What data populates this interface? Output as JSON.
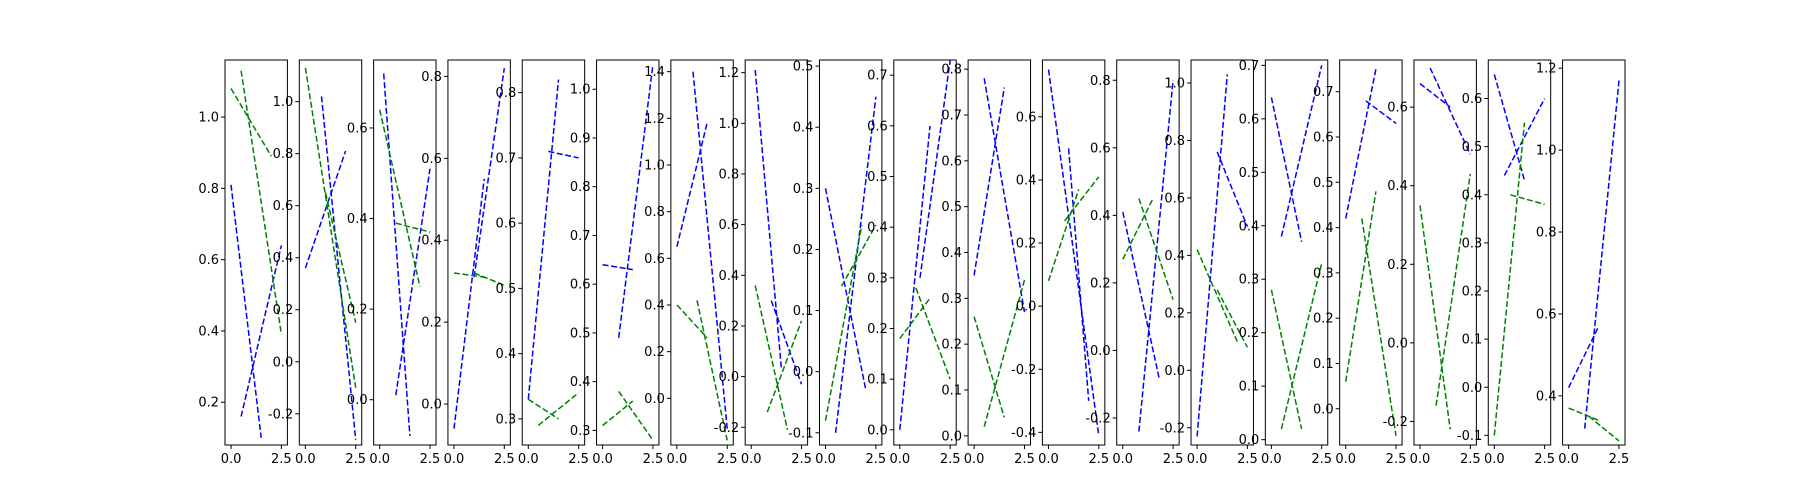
{
  "figure": {
    "background": "#ffffff"
  },
  "chart_data": [
    {
      "type": "line",
      "xticks": [
        "0.0",
        "2.5"
      ],
      "yticks": [
        "0.2",
        "0.4",
        "0.6",
        "0.8",
        "1.0"
      ],
      "ylim": [
        0.08,
        1.16
      ],
      "series": [
        {
          "color": "#0000ff",
          "x": [
            0,
            1.5
          ],
          "y": [
            0.81,
            0.1
          ]
        },
        {
          "color": "#0000ff",
          "x": [
            0.5,
            2.5
          ],
          "y": [
            0.16,
            0.64
          ]
        },
        {
          "color": "#008000",
          "x": [
            0,
            2
          ],
          "y": [
            1.08,
            0.89
          ]
        },
        {
          "color": "#008000",
          "x": [
            0.5,
            2.5
          ],
          "y": [
            1.13,
            0.39
          ]
        }
      ]
    },
    {
      "type": "line",
      "xticks": [
        "0.0",
        "2.5"
      ],
      "yticks": [
        "-0.2",
        "0.0",
        "0.2",
        "0.4",
        "0.6",
        "0.8",
        "1.0"
      ],
      "ylim": [
        -0.32,
        1.16
      ],
      "series": [
        {
          "color": "#0000ff",
          "x": [
            0,
            2
          ],
          "y": [
            0.36,
            0.81
          ]
        },
        {
          "color": "#0000ff",
          "x": [
            0.8,
            2.5
          ],
          "y": [
            1.02,
            -0.3
          ]
        },
        {
          "color": "#008000",
          "x": [
            0,
            2.5
          ],
          "y": [
            1.13,
            -0.1
          ]
        },
        {
          "color": "#008000",
          "x": [
            1,
            2.5
          ],
          "y": [
            0.65,
            0.15
          ]
        }
      ]
    },
    {
      "type": "line",
      "xticks": [
        "0.0",
        "2.5"
      ],
      "yticks": [
        "0.0",
        "0.2",
        "0.4",
        "0.6"
      ],
      "ylim": [
        -0.1,
        0.75
      ],
      "series": [
        {
          "color": "#0000ff",
          "x": [
            0.2,
            1.5
          ],
          "y": [
            0.72,
            -0.08
          ]
        },
        {
          "color": "#0000ff",
          "x": [
            0.8,
            2.5
          ],
          "y": [
            0.01,
            0.51
          ]
        },
        {
          "color": "#008000",
          "x": [
            0,
            2
          ],
          "y": [
            0.64,
            0.25
          ]
        },
        {
          "color": "#008000",
          "x": [
            0.8,
            2.5
          ],
          "y": [
            0.39,
            0.37
          ]
        }
      ]
    },
    {
      "type": "line",
      "xticks": [
        "0.0",
        "2.5"
      ],
      "yticks": [
        "0.0",
        "0.2",
        "0.4",
        "0.6",
        "0.8"
      ],
      "ylim": [
        -0.1,
        0.84
      ],
      "series": [
        {
          "color": "#0000ff",
          "x": [
            0,
            1.5
          ],
          "y": [
            -0.06,
            0.55
          ]
        },
        {
          "color": "#0000ff",
          "x": [
            1,
            2.5
          ],
          "y": [
            0.31,
            0.82
          ]
        },
        {
          "color": "#008000",
          "x": [
            0,
            1.5
          ],
          "y": [
            0.32,
            0.31
          ]
        },
        {
          "color": "#008000",
          "x": [
            1,
            2.5
          ],
          "y": [
            0.32,
            0.29
          ]
        }
      ]
    },
    {
      "type": "line",
      "xticks": [
        "0.0",
        "2.5"
      ],
      "yticks": [
        "0.3",
        "0.4",
        "0.5",
        "0.6",
        "0.7",
        "0.8"
      ],
      "ylim": [
        0.26,
        0.85
      ],
      "series": [
        {
          "color": "#0000ff",
          "x": [
            0,
            1.5
          ],
          "y": [
            0.33,
            0.82
          ]
        },
        {
          "color": "#0000ff",
          "x": [
            1,
            2.5
          ],
          "y": [
            0.71,
            0.7
          ]
        },
        {
          "color": "#008000",
          "x": [
            0,
            1.5
          ],
          "y": [
            0.33,
            0.3
          ]
        },
        {
          "color": "#008000",
          "x": [
            0.5,
            2.5
          ],
          "y": [
            0.29,
            0.34
          ]
        }
      ]
    },
    {
      "type": "line",
      "xticks": [
        "0.0",
        "2.5"
      ],
      "yticks": [
        "0.3",
        "0.4",
        "0.5",
        "0.6",
        "0.7",
        "0.8",
        "0.9",
        "1.0"
      ],
      "ylim": [
        0.27,
        1.06
      ],
      "series": [
        {
          "color": "#0000ff",
          "x": [
            0,
            1.5
          ],
          "y": [
            0.64,
            0.63
          ]
        },
        {
          "color": "#0000ff",
          "x": [
            0.8,
            2.5
          ],
          "y": [
            0.49,
            1.05
          ]
        },
        {
          "color": "#008000",
          "x": [
            0,
            1.5
          ],
          "y": [
            0.31,
            0.36
          ]
        },
        {
          "color": "#008000",
          "x": [
            0.8,
            2.5
          ],
          "y": [
            0.38,
            0.28
          ]
        }
      ]
    },
    {
      "type": "line",
      "xticks": [
        "0.0",
        "2.5"
      ],
      "yticks": [
        "0.0",
        "0.2",
        "0.4",
        "0.6",
        "0.8",
        "1.0",
        "1.2",
        "1.4"
      ],
      "ylim": [
        -0.2,
        1.45
      ],
      "series": [
        {
          "color": "#0000ff",
          "x": [
            0,
            1.5
          ],
          "y": [
            0.65,
            1.18
          ]
        },
        {
          "color": "#0000ff",
          "x": [
            0.8,
            2.5
          ],
          "y": [
            1.4,
            -0.13
          ]
        },
        {
          "color": "#008000",
          "x": [
            0,
            1.5
          ],
          "y": [
            0.4,
            0.26
          ]
        },
        {
          "color": "#008000",
          "x": [
            1,
            2.5
          ],
          "y": [
            0.42,
            -0.18
          ]
        }
      ]
    },
    {
      "type": "line",
      "xticks": [
        "0.0",
        "2.5"
      ],
      "yticks": [
        "-0.2",
        "0.0",
        "0.2",
        "0.4",
        "0.6",
        "0.8",
        "1.0",
        "1.2"
      ],
      "ylim": [
        -0.27,
        1.25
      ],
      "series": [
        {
          "color": "#0000ff",
          "x": [
            0.2,
            1.5
          ],
          "y": [
            1.21,
            0.03
          ]
        },
        {
          "color": "#0000ff",
          "x": [
            1,
            2.5
          ],
          "y": [
            0.3,
            -0.03
          ]
        },
        {
          "color": "#008000",
          "x": [
            0.2,
            1.8
          ],
          "y": [
            0.36,
            -0.21
          ]
        },
        {
          "color": "#008000",
          "x": [
            0.8,
            2.5
          ],
          "y": [
            -0.14,
            0.22
          ]
        }
      ]
    },
    {
      "type": "line",
      "xticks": [
        "0.0",
        "2.5"
      ],
      "yticks": [
        "-0.1",
        "0.0",
        "0.1",
        "0.2",
        "0.3",
        "0.4",
        "0.5"
      ],
      "ylim": [
        -0.12,
        0.51
      ],
      "series": [
        {
          "color": "#0000ff",
          "x": [
            0,
            2
          ],
          "y": [
            0.3,
            -0.03
          ]
        },
        {
          "color": "#0000ff",
          "x": [
            0.5,
            2.5
          ],
          "y": [
            -0.1,
            0.45
          ]
        },
        {
          "color": "#008000",
          "x": [
            0,
            1.8
          ],
          "y": [
            -0.08,
            0.24
          ]
        },
        {
          "color": "#008000",
          "x": [
            0.8,
            2.5
          ],
          "y": [
            0.14,
            0.24
          ]
        }
      ]
    },
    {
      "type": "line",
      "xticks": [
        "0.0",
        "2.5"
      ],
      "yticks": [
        "0.0",
        "0.1",
        "0.2",
        "0.3",
        "0.4",
        "0.5",
        "0.6",
        "0.7"
      ],
      "ylim": [
        -0.03,
        0.73
      ],
      "series": [
        {
          "color": "#0000ff",
          "x": [
            0,
            1.5
          ],
          "y": [
            0.0,
            0.6
          ]
        },
        {
          "color": "#0000ff",
          "x": [
            1,
            2.5
          ],
          "y": [
            0.3,
            0.73
          ]
        },
        {
          "color": "#008000",
          "x": [
            0,
            1.5
          ],
          "y": [
            0.18,
            0.26
          ]
        },
        {
          "color": "#008000",
          "x": [
            0.8,
            2.5
          ],
          "y": [
            0.28,
            0.1
          ]
        }
      ]
    },
    {
      "type": "line",
      "xticks": [
        "0.0",
        "2.5"
      ],
      "yticks": [
        "0.0",
        "0.1",
        "0.2",
        "0.3",
        "0.4",
        "0.5",
        "0.6",
        "0.7",
        "0.8"
      ],
      "ylim": [
        -0.02,
        0.82
      ],
      "series": [
        {
          "color": "#0000ff",
          "x": [
            0,
            1.5
          ],
          "y": [
            0.35,
            0.76
          ]
        },
        {
          "color": "#0000ff",
          "x": [
            0.5,
            2.5
          ],
          "y": [
            0.78,
            0.27
          ]
        },
        {
          "color": "#008000",
          "x": [
            0,
            1.5
          ],
          "y": [
            0.26,
            0.04
          ]
        },
        {
          "color": "#008000",
          "x": [
            0.5,
            2.5
          ],
          "y": [
            0.02,
            0.34
          ]
        }
      ]
    },
    {
      "type": "line",
      "xticks": [
        "0.0",
        "2.5"
      ],
      "yticks": [
        "-0.4",
        "-0.2",
        "0.0",
        "0.2",
        "0.4",
        "0.6"
      ],
      "ylim": [
        -0.44,
        0.78
      ],
      "series": [
        {
          "color": "#0000ff",
          "x": [
            0,
            2.5
          ],
          "y": [
            0.75,
            -0.41
          ]
        },
        {
          "color": "#0000ff",
          "x": [
            1,
            2
          ],
          "y": [
            0.5,
            -0.3
          ]
        },
        {
          "color": "#008000",
          "x": [
            0,
            1.5
          ],
          "y": [
            0.08,
            0.37
          ]
        },
        {
          "color": "#008000",
          "x": [
            0.8,
            2.5
          ],
          "y": [
            0.27,
            0.41
          ]
        }
      ]
    },
    {
      "type": "line",
      "xticks": [
        "0.0",
        "2.5"
      ],
      "yticks": [
        "-0.2",
        "0.0",
        "0.2",
        "0.4",
        "0.6",
        "0.8"
      ],
      "ylim": [
        -0.28,
        0.86
      ],
      "series": [
        {
          "color": "#0000ff",
          "x": [
            0,
            1.8
          ],
          "y": [
            0.41,
            -0.08
          ]
        },
        {
          "color": "#0000ff",
          "x": [
            0.8,
            2.5
          ],
          "y": [
            -0.24,
            0.8
          ]
        },
        {
          "color": "#008000",
          "x": [
            0,
            1.5
          ],
          "y": [
            0.27,
            0.45
          ]
        },
        {
          "color": "#008000",
          "x": [
            0.8,
            2.5
          ],
          "y": [
            0.45,
            0.15
          ]
        }
      ]
    },
    {
      "type": "line",
      "xticks": [
        "0.0",
        "2.5"
      ],
      "yticks": [
        "-0.2",
        "0.0",
        "0.2",
        "0.4",
        "0.6",
        "0.8",
        "1.0"
      ],
      "ylim": [
        -0.26,
        1.08
      ],
      "series": [
        {
          "color": "#0000ff",
          "x": [
            0,
            1.5
          ],
          "y": [
            -0.23,
            1.03
          ]
        },
        {
          "color": "#0000ff",
          "x": [
            1,
            2.5
          ],
          "y": [
            0.76,
            0.5
          ]
        },
        {
          "color": "#008000",
          "x": [
            0,
            2
          ],
          "y": [
            0.42,
            0.1
          ]
        },
        {
          "color": "#008000",
          "x": [
            1,
            2.5
          ],
          "y": [
            0.28,
            0.08
          ]
        }
      ]
    },
    {
      "type": "line",
      "xticks": [
        "0.0",
        "2.5"
      ],
      "yticks": [
        "0.0",
        "0.1",
        "0.2",
        "0.3",
        "0.4",
        "0.5",
        "0.6",
        "0.7"
      ],
      "ylim": [
        -0.01,
        0.71
      ],
      "series": [
        {
          "color": "#0000ff",
          "x": [
            0,
            1.5
          ],
          "y": [
            0.64,
            0.37
          ]
        },
        {
          "color": "#0000ff",
          "x": [
            0.5,
            2.5
          ],
          "y": [
            0.38,
            0.7
          ]
        },
        {
          "color": "#008000",
          "x": [
            0,
            1.5
          ],
          "y": [
            0.28,
            0.02
          ]
        },
        {
          "color": "#008000",
          "x": [
            0.5,
            2.5
          ],
          "y": [
            0.02,
            0.33
          ]
        }
      ]
    },
    {
      "type": "line",
      "xticks": [
        "0.0",
        "2.5"
      ],
      "yticks": [
        "0.0",
        "0.1",
        "0.2",
        "0.3",
        "0.4",
        "0.5",
        "0.6",
        "0.7"
      ],
      "ylim": [
        -0.08,
        0.77
      ],
      "series": [
        {
          "color": "#0000ff",
          "x": [
            0,
            1.5
          ],
          "y": [
            0.42,
            0.75
          ]
        },
        {
          "color": "#0000ff",
          "x": [
            1,
            2.5
          ],
          "y": [
            0.68,
            0.63
          ]
        },
        {
          "color": "#008000",
          "x": [
            0,
            1.5
          ],
          "y": [
            0.06,
            0.48
          ]
        },
        {
          "color": "#008000",
          "x": [
            0.8,
            2.5
          ],
          "y": [
            0.42,
            -0.06
          ]
        }
      ]
    },
    {
      "type": "line",
      "xticks": [
        "0.0",
        "2.5"
      ],
      "yticks": [
        "-0.2",
        "0.0",
        "0.2",
        "0.4",
        "0.6"
      ],
      "ylim": [
        -0.26,
        0.72
      ],
      "series": [
        {
          "color": "#0000ff",
          "x": [
            0,
            1.5
          ],
          "y": [
            0.66,
            0.6
          ]
        },
        {
          "color": "#0000ff",
          "x": [
            0.5,
            2.5
          ],
          "y": [
            0.7,
            0.48
          ]
        },
        {
          "color": "#008000",
          "x": [
            0,
            1.5
          ],
          "y": [
            0.35,
            -0.22
          ]
        },
        {
          "color": "#008000",
          "x": [
            0.8,
            2.5
          ],
          "y": [
            -0.16,
            0.43
          ]
        }
      ]
    },
    {
      "type": "line",
      "xticks": [
        "0.0",
        "2.5"
      ],
      "yticks": [
        "-0.1",
        "0.0",
        "0.1",
        "0.2",
        "0.3",
        "0.4",
        "0.5",
        "0.6"
      ],
      "ylim": [
        -0.12,
        0.68
      ],
      "series": [
        {
          "color": "#0000ff",
          "x": [
            0,
            1.5
          ],
          "y": [
            0.65,
            0.43
          ]
        },
        {
          "color": "#0000ff",
          "x": [
            0.5,
            2.5
          ],
          "y": [
            0.44,
            0.6
          ]
        },
        {
          "color": "#008000",
          "x": [
            0,
            1.5
          ],
          "y": [
            -0.1,
            0.55
          ]
        },
        {
          "color": "#008000",
          "x": [
            0.8,
            2.5
          ],
          "y": [
            0.4,
            0.38
          ]
        }
      ]
    },
    {
      "type": "line",
      "xticks": [
        "0.0",
        "2.5"
      ],
      "yticks": [
        "0.4",
        "0.6",
        "0.8",
        "1.0",
        "1.2"
      ],
      "ylim": [
        0.28,
        1.22
      ],
      "series": [
        {
          "color": "#0000ff",
          "x": [
            0,
            1.5
          ],
          "y": [
            0.42,
            0.57
          ]
        },
        {
          "color": "#0000ff",
          "x": [
            0.8,
            2.5
          ],
          "y": [
            0.32,
            1.17
          ]
        },
        {
          "color": "#008000",
          "x": [
            0,
            1.5
          ],
          "y": [
            0.37,
            0.34
          ]
        },
        {
          "color": "#008000",
          "x": [
            1,
            2.5
          ],
          "y": [
            0.35,
            0.29
          ]
        }
      ]
    }
  ]
}
